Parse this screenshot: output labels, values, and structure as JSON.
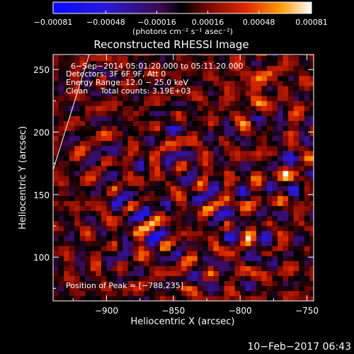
{
  "chart_data": {
    "type": "heatmap",
    "title": "Reconstructed RHESSI Image",
    "xlabel": "Heliocentric X (arcsec)",
    "ylabel": "Heliocentric Y (arcsec)",
    "xlim": [
      -940,
      -745
    ],
    "ylim": [
      65,
      262
    ],
    "x_ticks": [
      -900,
      -850,
      -800,
      -750
    ],
    "x_tick_labels": [
      "−900",
      "−850",
      "−800",
      "−750"
    ],
    "y_ticks": [
      100,
      150,
      200,
      250
    ],
    "y_tick_labels": [
      "100",
      "150",
      "200",
      "250"
    ],
    "colorbar": {
      "min": -0.00081,
      "max": 0.00081,
      "ticks": [
        -0.00081,
        -0.00048,
        -0.00016,
        0.00016,
        0.00048,
        0.00081
      ],
      "tick_labels": [
        "−0.00081",
        "−0.00048",
        "−0.00016",
        "0.00016",
        "0.00048",
        "0.00081"
      ],
      "unit_label": "(photons cm⁻² s⁻¹ asec⁻²)"
    },
    "annotations": [
      "6−Sep−2014 05:01:20.000 to 05:11:20.000",
      "Detectors: 3F 6F 9F, Att 0",
      "Energy Range: 12.0 − 25.0 keV",
      "Clean     Total counts: 3.19E+03"
    ],
    "peak_label": "Position of Peak = [−788,235]",
    "peak": [
      -788,
      235
    ],
    "grid": false
  },
  "footer_timestamp": "10−Feb−2017 06:43"
}
